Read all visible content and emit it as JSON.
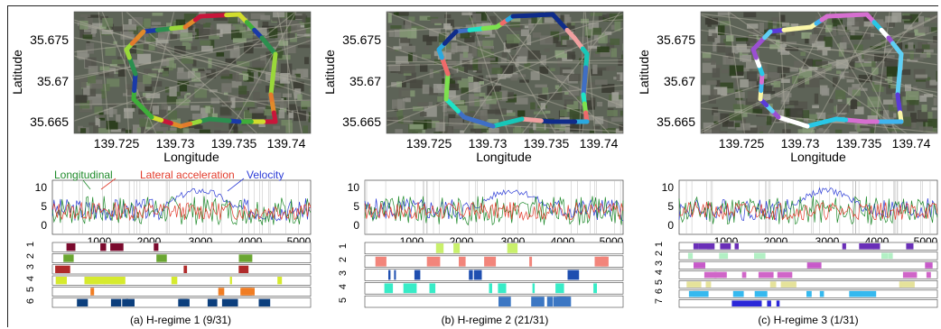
{
  "panels": [
    {
      "caption": "(a) H-regime 1 (9/31)",
      "map": {
        "ylabel": "Latitude",
        "xlabel": "Longitude",
        "yticks": [
          "35.675",
          "35.67",
          "35.665"
        ],
        "xticks": [
          "139.725",
          "139.73",
          "139.735",
          "139.74"
        ],
        "route_colors": [
          "#1a3aa8",
          "#2b8f4f",
          "#9ad83a",
          "#e37b2c",
          "#e08a2a",
          "#c8163a",
          "#d2dd2d",
          "#3fae3a"
        ]
      },
      "signal": {
        "labels": [
          "Longitudinal",
          "Lateral acceleration",
          "Velocity"
        ],
        "label_colors": [
          "#1e8a2a",
          "#e23b2b",
          "#2b3bd6"
        ],
        "yticks": [
          "10",
          "5",
          "0"
        ],
        "xticks": [
          "1000",
          "2000",
          "3000",
          "4000",
          "5000"
        ]
      },
      "state_rows": [
        "1",
        "2",
        "3",
        "4",
        "5",
        "6"
      ],
      "state_colors": [
        "#7b0a2e",
        "#6aa632",
        "#b02a2a",
        "#d6ea2e",
        "#f07d24",
        "#0c3f7d"
      ]
    },
    {
      "caption": "(b) H-regime 2 (21/31)",
      "map": {
        "ylabel": "Latitude",
        "xlabel": "Longitude",
        "yticks": [
          "35.675",
          "35.67",
          "35.665"
        ],
        "xticks": [
          "139.725",
          "139.73",
          "139.735",
          "139.74"
        ],
        "route_colors": [
          "#3f6fc5",
          "#1fe3c6",
          "#7de24e",
          "#ef6a6a",
          "#2aa9e0",
          "#0f2c8a",
          "#f0a0a0",
          "#17c7b8"
        ]
      },
      "signal": {
        "labels": [],
        "label_colors": [],
        "yticks": [
          "10",
          "5",
          "0"
        ],
        "xticks": [
          "1000",
          "2000",
          "3000",
          "4000",
          "5000"
        ]
      },
      "state_rows": [
        "1",
        "2",
        "3",
        "4",
        "5"
      ],
      "state_colors": [
        "#c9f06b",
        "#f2857b",
        "#1f4fb0",
        "#38ecc7",
        "#3c77c3"
      ]
    },
    {
      "caption": "(c) H-regime 3 (1/31)",
      "map": {
        "ylabel": "Latitude",
        "xlabel": "Longitude",
        "yticks": [
          "35.675",
          "35.67",
          "35.665"
        ],
        "xticks": [
          "139.725",
          "139.73",
          "139.735",
          "139.74"
        ],
        "route_colors": [
          "#5a3bd8",
          "#fbf7a8",
          "#3fb4ef",
          "#d66fd0",
          "#29c7e6",
          "#ffffff",
          "#9b4fd2",
          "#5fd0f5"
        ]
      },
      "signal": {
        "labels": [],
        "label_colors": [],
        "yticks": [
          "10",
          "5",
          "0"
        ],
        "xticks": [
          "1000",
          "2000",
          "3000",
          "4000",
          "5000"
        ]
      },
      "state_rows": [
        "1",
        "2",
        "3",
        "4",
        "5",
        "6",
        "7"
      ],
      "state_colors": [
        "#6a2fb8",
        "#b2f0c4",
        "#c75ac9",
        "#d066c8",
        "#e5e29a",
        "#35b9ef",
        "#2b28d8"
      ]
    }
  ]
}
